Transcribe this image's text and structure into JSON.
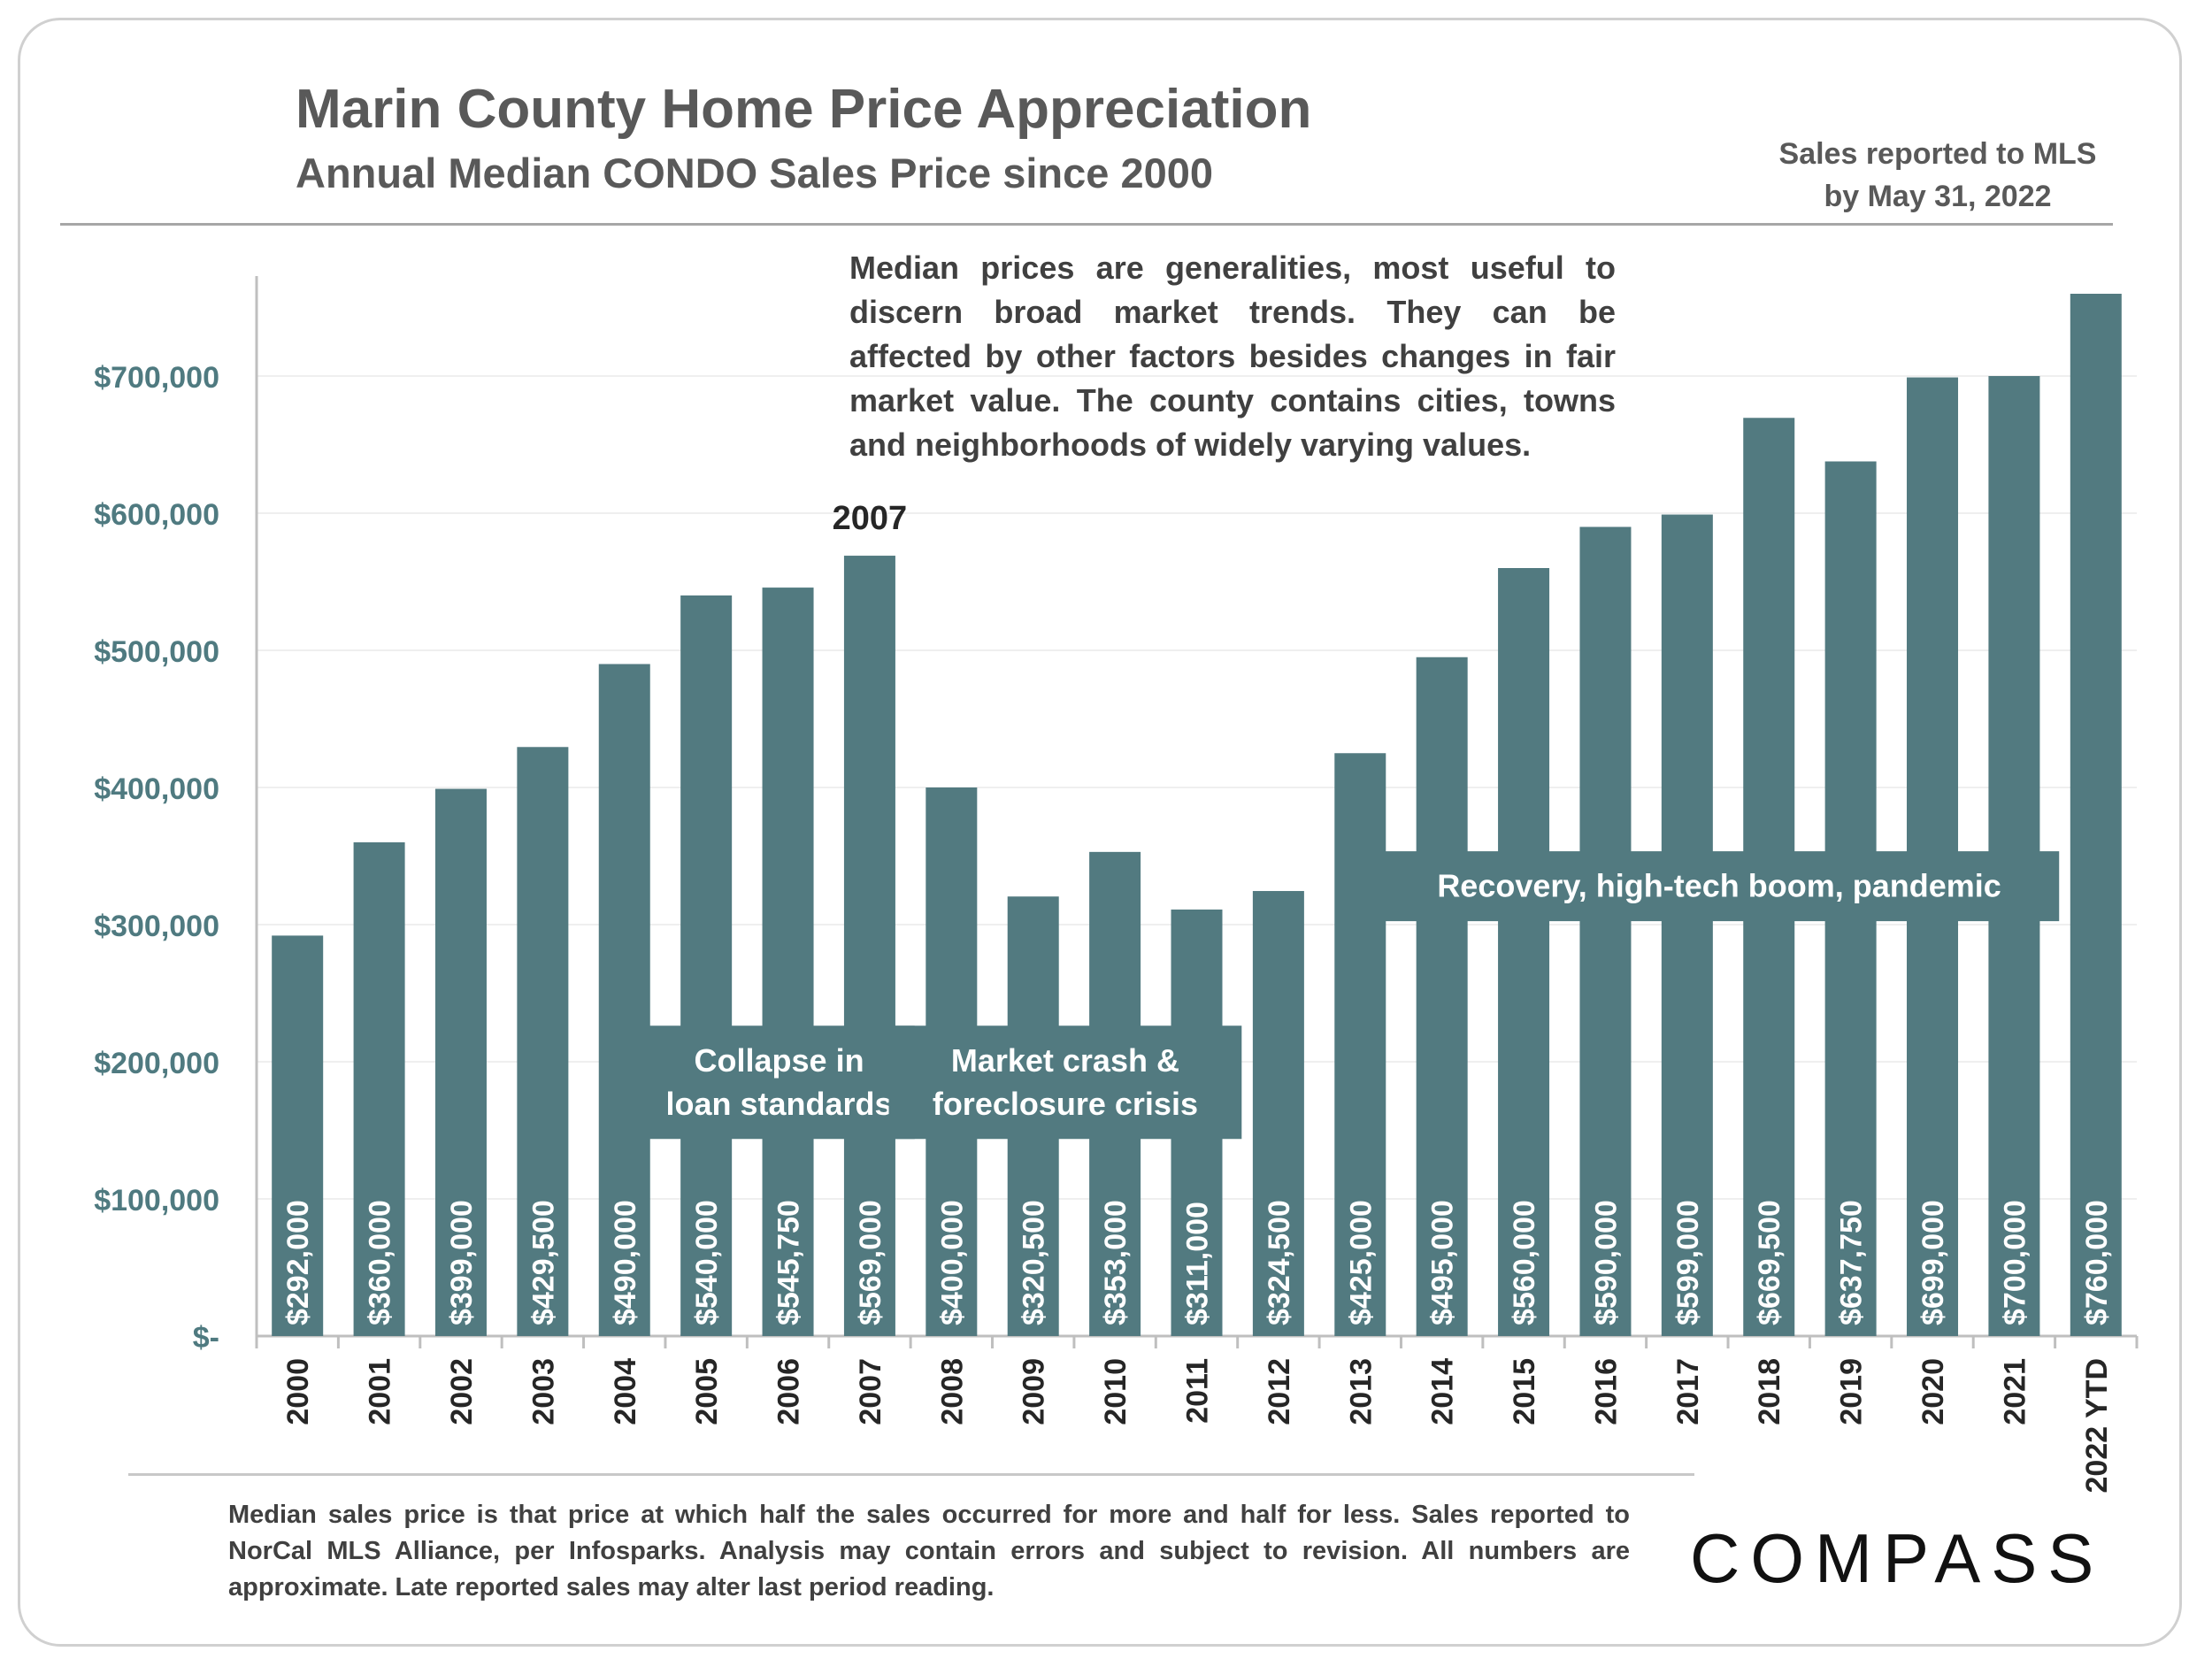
{
  "header": {
    "title": "Marin County Home Price Appreciation",
    "subtitle": "Annual Median CONDO Sales Price since 2000",
    "mls_note_line1": "Sales reported to MLS",
    "mls_note_line2": "by May 31, 2022"
  },
  "explanation": {
    "line1": "Median prices are generalities, most useful to",
    "line2": "discern broad market trends. They can be",
    "line3": "affected by other factors besides changes in fair",
    "line4": "market value. The county contains cities, towns",
    "line5": "and neighborhoods of widely varying values."
  },
  "footer": {
    "note": "Median sales price is that price at which half the sales occurred for more and half for less. Sales reported to NorCal MLS Alliance, per Infosparks. Analysis may contain errors and subject to revision. All numbers are approximate. Late reported sales may alter last period reading.",
    "logo": "COMPASS"
  },
  "colors": {
    "bar": "#527a80",
    "axis_label": "#4f7a80",
    "text": "#404040"
  },
  "chart_data": {
    "type": "bar",
    "title": "Annual Median CONDO Sales Price since 2000",
    "xlabel": "",
    "ylabel": "",
    "ylim": [
      0,
      780000
    ],
    "yticks": [
      0,
      100000,
      200000,
      300000,
      400000,
      500000,
      600000,
      700000
    ],
    "ytick_labels": [
      "$-",
      "$100,000",
      "$200,000",
      "$300,000",
      "$400,000",
      "$500,000",
      "$600,000",
      "$700,000"
    ],
    "categories": [
      "2000",
      "2001",
      "2002",
      "2003",
      "2004",
      "2005",
      "2006",
      "2007",
      "2008",
      "2009",
      "2010",
      "2011",
      "2012",
      "2013",
      "2014",
      "2015",
      "2016",
      "2017",
      "2018",
      "2019",
      "2020",
      "2021",
      "2022 YTD"
    ],
    "values": [
      292000,
      360000,
      399000,
      429500,
      490000,
      540000,
      545750,
      569000,
      400000,
      320500,
      353000,
      311000,
      324500,
      425000,
      495000,
      560000,
      590000,
      599000,
      669500,
      637750,
      699000,
      700000,
      760000
    ],
    "data_labels": [
      "$292,000",
      "$360,000",
      "$399,000",
      "$429,500",
      "$490,000",
      "$540,000",
      "$545,750",
      "$569,000",
      "$400,000",
      "$320,500",
      "$353,000",
      "$311,000",
      "$324,500",
      "$425,000",
      "$495,000",
      "$560,000",
      "$590,000",
      "$599,000",
      "$669,500",
      "$637,750",
      "$699,000",
      "$700,000",
      "$760,000"
    ],
    "annotations": [
      {
        "text": "2007",
        "category": "2007",
        "kind": "above-bar"
      },
      {
        "lines": [
          "Collapse in",
          "loan standards"
        ],
        "span": [
          "2005",
          "2007"
        ],
        "value_center": 185000
      },
      {
        "lines": [
          "Market crash &",
          "foreclosure crisis"
        ],
        "span": [
          "2008",
          "2011"
        ],
        "value_center": 185000
      },
      {
        "lines": [
          "Recovery, high-tech boom, pandemic"
        ],
        "span": [
          "2014",
          "2021"
        ],
        "value_center": 328000
      }
    ],
    "grid": true
  }
}
